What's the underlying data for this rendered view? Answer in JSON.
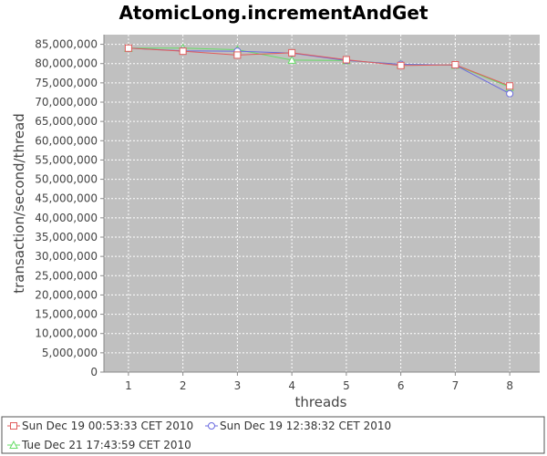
{
  "chart_data": {
    "type": "line",
    "title": "AtomicLong.incrementAndGet",
    "xlabel": "threads",
    "ylabel": "transaction/second/thread",
    "x": [
      1,
      2,
      3,
      4,
      5,
      6,
      7,
      8
    ],
    "xlim": [
      0.55,
      8.55
    ],
    "ylim": [
      0,
      87500000
    ],
    "yticks": [
      0,
      5000000,
      10000000,
      15000000,
      20000000,
      25000000,
      30000000,
      35000000,
      40000000,
      45000000,
      50000000,
      55000000,
      60000000,
      65000000,
      70000000,
      75000000,
      80000000,
      85000000
    ],
    "grid": true,
    "legend_position": "bottom",
    "plot_background": "#c0c0c0",
    "series": [
      {
        "name": "Sun Dec 19 00:53:33 CET 2010",
        "color": "#e05c5c",
        "marker": "square",
        "values": [
          84000000,
          83200000,
          82200000,
          82800000,
          81000000,
          79500000,
          79700000,
          74200000
        ]
      },
      {
        "name": "Sun Dec 19 12:38:32 CET 2010",
        "color": "#6a6adf",
        "marker": "circle",
        "values": [
          84000000,
          83300000,
          83200000,
          82700000,
          80800000,
          79800000,
          79600000,
          72200000
        ]
      },
      {
        "name": "Tue Dec 21 17:43:59 CET 2010",
        "color": "#66dd66",
        "marker": "triangle",
        "values": [
          84000000,
          84000000,
          83600000,
          80900000,
          80800000,
          79800000,
          79600000,
          73900000
        ]
      }
    ]
  }
}
